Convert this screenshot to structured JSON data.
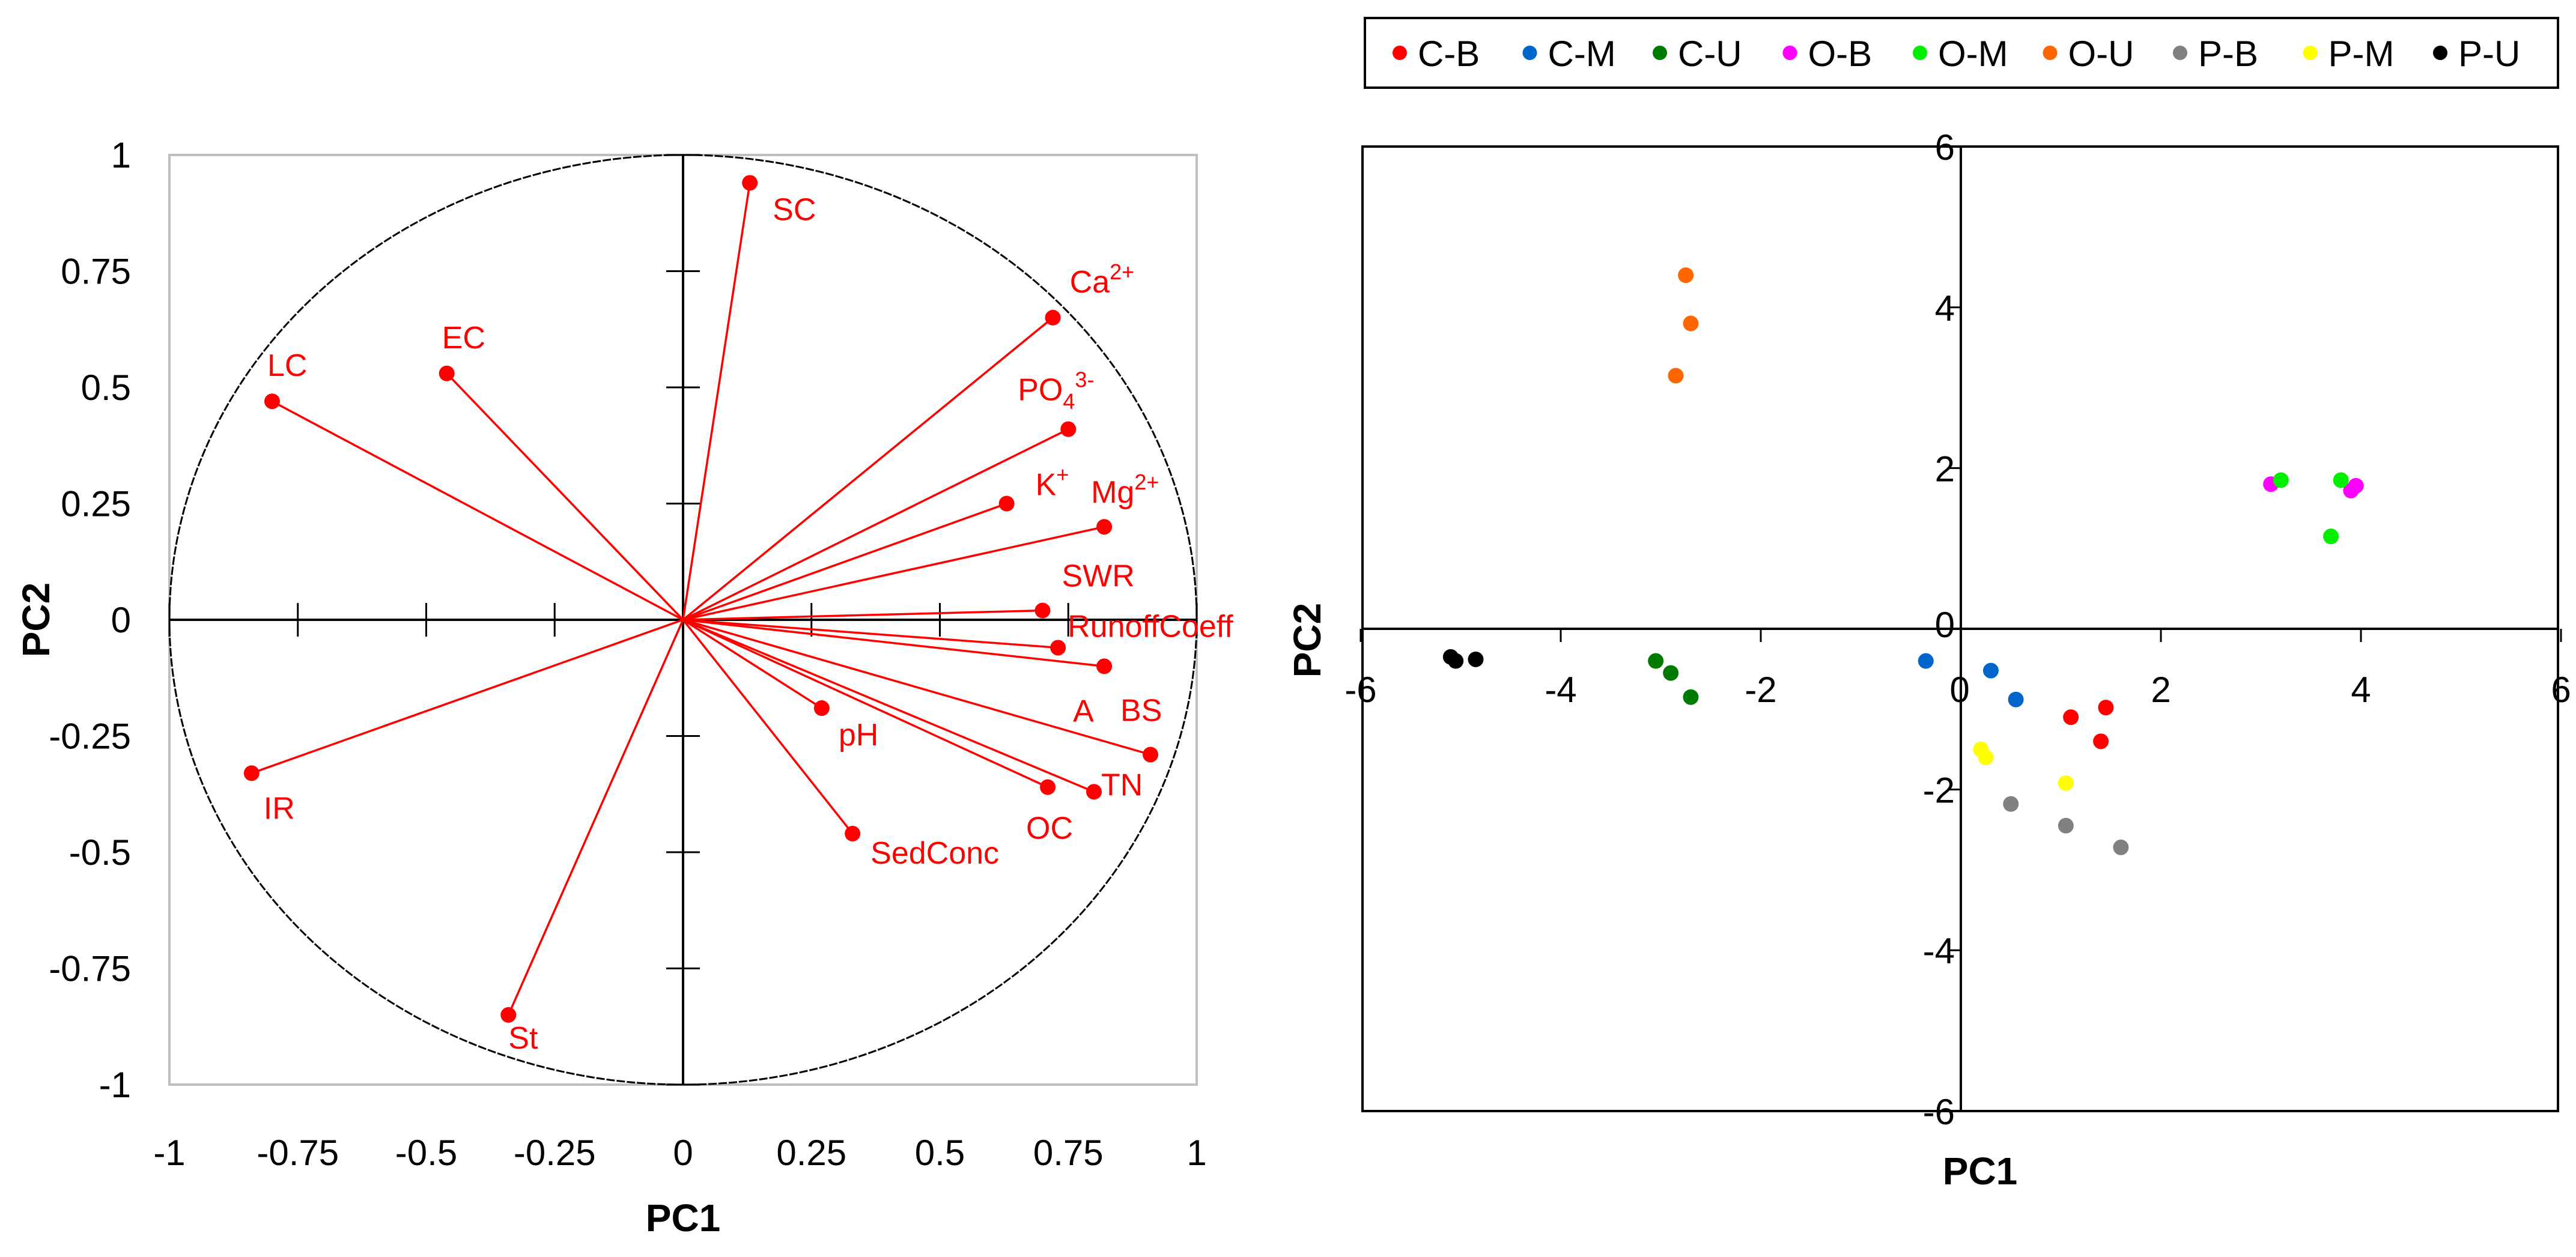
{
  "chart_data": [
    {
      "type": "scatter",
      "subtype": "pca-loading-plot",
      "xlabel": "PC1",
      "ylabel": "PC2",
      "xlim": [
        -1,
        1
      ],
      "ylim": [
        -1,
        1
      ],
      "x_ticks": [
        "-1",
        "-0.75",
        "-0.5",
        "-0.25",
        "0",
        "0.25",
        "0.5",
        "0.75",
        "1"
      ],
      "y_ticks": [
        "1",
        "0.75",
        "0.5",
        "0.25",
        "0",
        "-0.25",
        "-0.5",
        "-0.75",
        "-1"
      ],
      "correlation_circle": true,
      "color": "#ff0000",
      "loadings": [
        {
          "name": "SC",
          "x": 0.13,
          "y": 0.94
        },
        {
          "name": "Ca2+",
          "x": 0.72,
          "y": 0.65
        },
        {
          "name": "EC",
          "x": -0.46,
          "y": 0.53
        },
        {
          "name": "LC",
          "x": -0.8,
          "y": 0.47
        },
        {
          "name": "PO43-",
          "x": 0.75,
          "y": 0.41
        },
        {
          "name": "K+",
          "x": 0.63,
          "y": 0.25
        },
        {
          "name": "Mg2+",
          "x": 0.82,
          "y": 0.2
        },
        {
          "name": "SWR",
          "x": 0.7,
          "y": 0.02
        },
        {
          "name": "RunoffCoeff",
          "x": 0.73,
          "y": -0.06
        },
        {
          "name": "A",
          "x": 0.82,
          "y": -0.1
        },
        {
          "name": "BS",
          "x": 0.91,
          "y": -0.29
        },
        {
          "name": "pH",
          "x": 0.27,
          "y": -0.19
        },
        {
          "name": "TN",
          "x": 0.8,
          "y": -0.37
        },
        {
          "name": "OC",
          "x": 0.71,
          "y": -0.36
        },
        {
          "name": "SedConc",
          "x": 0.33,
          "y": -0.46
        },
        {
          "name": "IR",
          "x": -0.84,
          "y": -0.33
        },
        {
          "name": "St",
          "x": -0.34,
          "y": -0.85
        }
      ],
      "label_parts": {
        "Ca2+": [
          "Ca",
          "2+"
        ],
        "PO43-": [
          "PO",
          "4",
          "3-"
        ],
        "K+": [
          "K",
          "+"
        ],
        "Mg2+": [
          "Mg",
          "2+"
        ]
      }
    },
    {
      "type": "scatter",
      "subtype": "pca-score-plot",
      "xlabel": "PC1",
      "ylabel": "PC2",
      "xlim": [
        -6,
        6
      ],
      "ylim": [
        -6,
        6
      ],
      "x_ticks": [
        "-6",
        "-4",
        "-2",
        "0",
        "2",
        "4",
        "6"
      ],
      "y_ticks": [
        "6",
        "4",
        "2",
        "0",
        "-2",
        "-4",
        "-6"
      ],
      "legend_position": "top",
      "series": [
        {
          "name": "C-B",
          "color": "#ff0000",
          "points": [
            [
              1.1,
              -1.1
            ],
            [
              1.45,
              -0.98
            ],
            [
              1.4,
              -1.4
            ]
          ]
        },
        {
          "name": "C-M",
          "color": "#0066cc",
          "points": [
            [
              -0.35,
              -0.4
            ],
            [
              0.3,
              -0.52
            ],
            [
              0.55,
              -0.88
            ]
          ]
        },
        {
          "name": "C-U",
          "color": "#007a00",
          "points": [
            [
              -3.05,
              -0.4
            ],
            [
              -2.9,
              -0.55
            ],
            [
              -2.7,
              -0.85
            ]
          ]
        },
        {
          "name": "O-B",
          "color": "#ff00ff",
          "points": [
            [
              3.1,
              1.8
            ],
            [
              3.9,
              1.72
            ],
            [
              3.95,
              1.78
            ]
          ]
        },
        {
          "name": "O-M",
          "color": "#00ee00",
          "points": [
            [
              3.2,
              1.85
            ],
            [
              3.8,
              1.85
            ],
            [
              3.7,
              1.15
            ]
          ]
        },
        {
          "name": "O-U",
          "color": "#ff6600",
          "points": [
            [
              -2.75,
              4.4
            ],
            [
              -2.7,
              3.8
            ],
            [
              -2.85,
              3.15
            ]
          ]
        },
        {
          "name": "P-B",
          "color": "#808080",
          "points": [
            [
              0.5,
              -2.18
            ],
            [
              1.05,
              -2.45
            ],
            [
              1.6,
              -2.72
            ]
          ]
        },
        {
          "name": "P-M",
          "color": "#ffff00",
          "points": [
            [
              0.2,
              -1.5
            ],
            [
              0.25,
              -1.6
            ],
            [
              1.05,
              -1.92
            ]
          ]
        },
        {
          "name": "P-U",
          "color": "#000000",
          "points": [
            [
              -5.1,
              -0.35
            ],
            [
              -5.05,
              -0.4
            ],
            [
              -4.85,
              -0.38
            ]
          ]
        }
      ]
    }
  ]
}
